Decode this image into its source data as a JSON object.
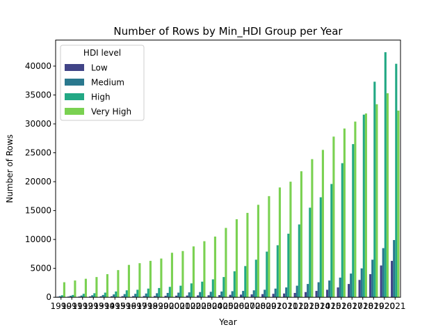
{
  "chart_data": {
    "type": "bar",
    "title": "Number of Rows by Min_HDI Group per Year",
    "xlabel": "Year",
    "ylabel": "Number of Rows",
    "ylim": [
      0,
      44500
    ],
    "yticks": [
      0,
      5000,
      10000,
      15000,
      20000,
      25000,
      30000,
      35000,
      40000
    ],
    "grid": false,
    "legend": {
      "title": "HDI level",
      "placement": "top-left"
    },
    "categories": [
      "1990",
      "1991",
      "1992",
      "1993",
      "1994",
      "1995",
      "1996",
      "1997",
      "1998",
      "1999",
      "2000",
      "2001",
      "2002",
      "2003",
      "2004",
      "2005",
      "2006",
      "2007",
      "2008",
      "2009",
      "2010",
      "2011",
      "2012",
      "2013",
      "2014",
      "2015",
      "2016",
      "2017",
      "2018",
      "2019",
      "2020",
      "2021"
    ],
    "series": [
      {
        "name": "Low",
        "color": "#414487",
        "values": [
          100,
          120,
          130,
          150,
          170,
          180,
          190,
          200,
          210,
          220,
          250,
          280,
          300,
          330,
          350,
          380,
          420,
          460,
          500,
          550,
          600,
          650,
          750,
          900,
          1100,
          1300,
          1700,
          2300,
          3000,
          4000,
          5500,
          6300
        ]
      },
      {
        "name": "Medium",
        "color": "#2a788e",
        "values": [
          200,
          250,
          300,
          350,
          400,
          500,
          550,
          600,
          650,
          700,
          750,
          800,
          850,
          900,
          950,
          1000,
          1050,
          1100,
          1200,
          1300,
          1500,
          1700,
          2000,
          2300,
          2600,
          2900,
          3400,
          4100,
          5000,
          6500,
          8500,
          9900
        ]
      },
      {
        "name": "High",
        "color": "#22a884",
        "values": [
          350,
          400,
          600,
          700,
          800,
          1000,
          1200,
          1300,
          1500,
          1600,
          1800,
          2000,
          2400,
          2700,
          3100,
          3500,
          4500,
          5400,
          6500,
          7900,
          9000,
          11000,
          12600,
          15500,
          17300,
          19600,
          23200,
          26500,
          31600,
          37300,
          42400,
          40400
        ]
      },
      {
        "name": "Very High",
        "color": "#7ad151",
        "values": [
          2600,
          2900,
          3200,
          3500,
          4000,
          4700,
          5600,
          5900,
          6300,
          6700,
          7700,
          8000,
          8800,
          9700,
          10500,
          12000,
          13500,
          14600,
          16000,
          17500,
          19000,
          20000,
          21800,
          23900,
          25500,
          27800,
          29200,
          30400,
          31800,
          33400,
          35300,
          32300
        ]
      }
    ]
  }
}
